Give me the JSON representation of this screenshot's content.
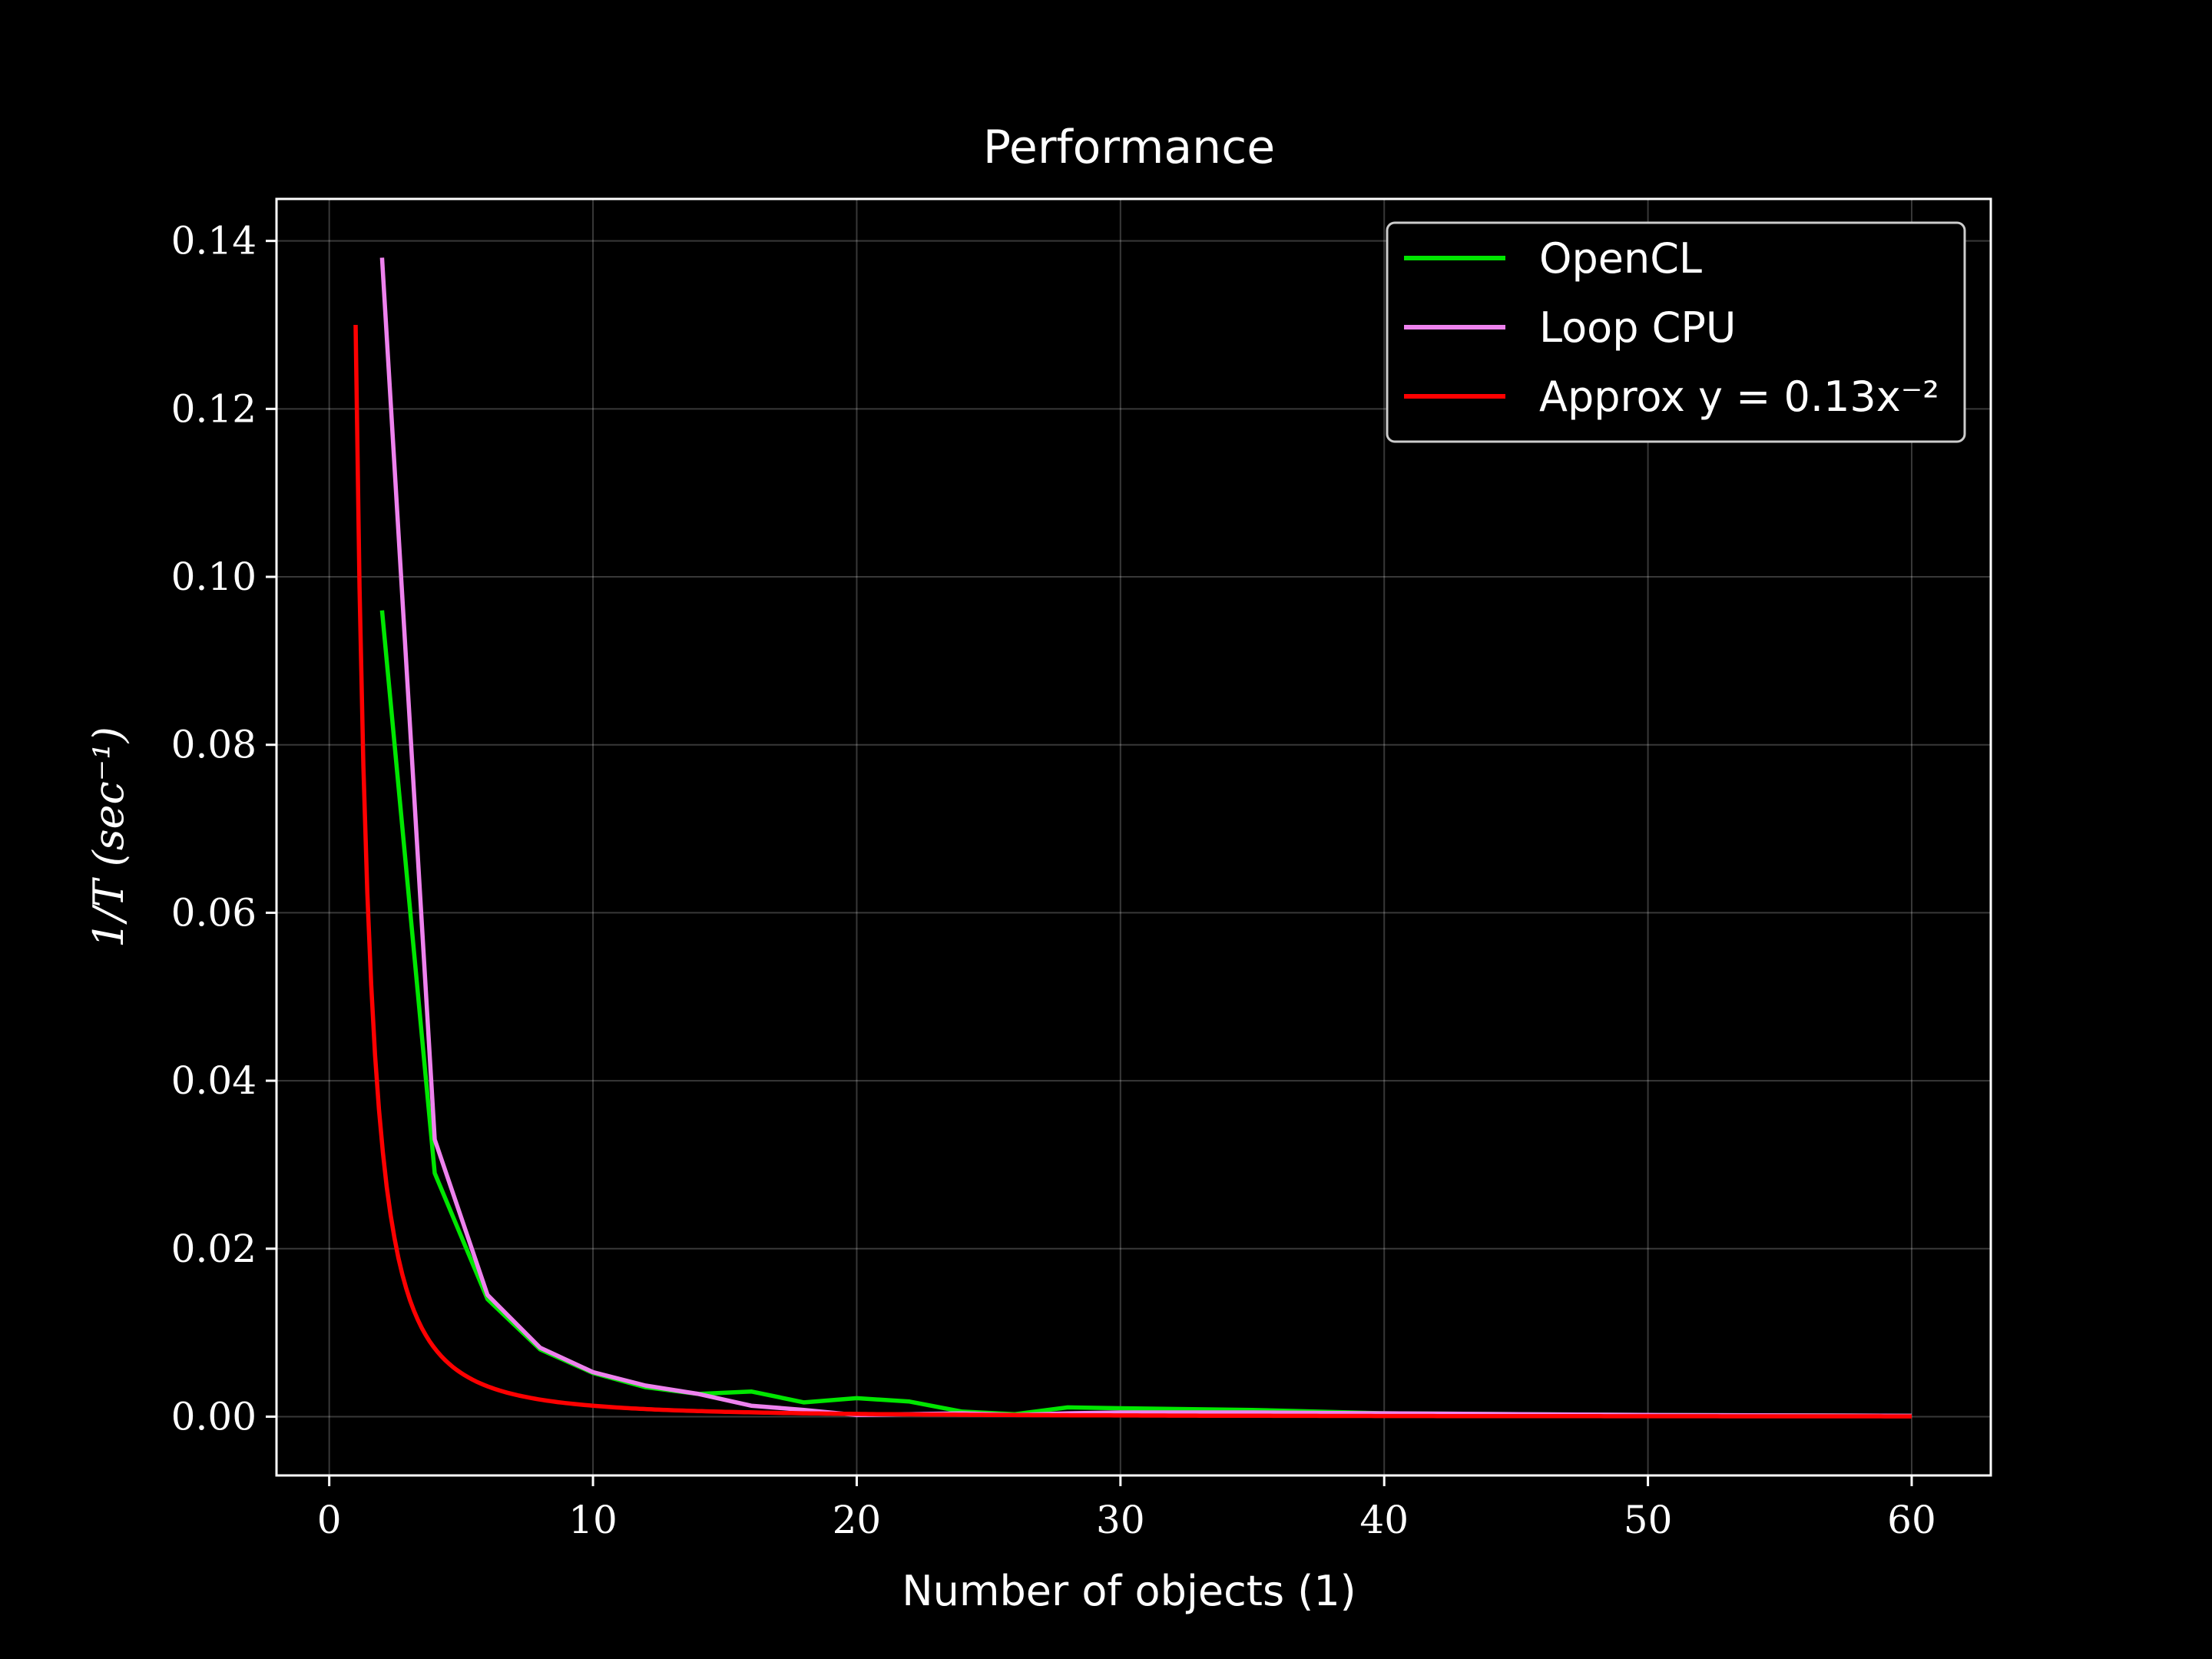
{
  "chart_data": {
    "type": "line",
    "title": "Performance",
    "xlabel": "Number of objects (1)",
    "ylabel": "1/T  (sec⁻¹)",
    "xlim": [
      -2,
      63
    ],
    "ylim": [
      -0.007,
      0.145
    ],
    "xticks": [
      0,
      10,
      20,
      30,
      40,
      50,
      60
    ],
    "xtick_labels": [
      "0",
      "10",
      "20",
      "30",
      "40",
      "50",
      "60"
    ],
    "yticks": [
      0.0,
      0.02,
      0.04,
      0.06,
      0.08,
      0.1,
      0.12,
      0.14
    ],
    "ytick_labels": [
      "0.00",
      "0.02",
      "0.04",
      "0.06",
      "0.08",
      "0.10",
      "0.12",
      "0.14"
    ],
    "grid": true,
    "legend_position": "top-right",
    "series": [
      {
        "name": "OpenCL",
        "color": "#00e600",
        "x": [
          2,
          4,
          6,
          8,
          10,
          12,
          14,
          16,
          18,
          20,
          22,
          24,
          26,
          28,
          30,
          35,
          40,
          50,
          60
        ],
        "y": [
          0.096,
          0.029,
          0.014,
          0.008,
          0.0052,
          0.0035,
          0.0027,
          0.003,
          0.0017,
          0.0022,
          0.0018,
          0.0006,
          0.0003,
          0.0011,
          0.001,
          0.0008,
          0.0004,
          0.0002,
          0.0001
        ]
      },
      {
        "name": "Loop CPU",
        "color": "#ee82ee",
        "x": [
          2,
          4,
          6,
          8,
          10,
          12,
          14,
          16,
          18,
          20,
          22,
          24,
          26,
          28,
          30,
          35,
          40,
          50,
          60
        ],
        "y": [
          0.138,
          0.033,
          0.0145,
          0.0082,
          0.0053,
          0.0037,
          0.0027,
          0.0013,
          0.0008,
          0.0002,
          0.0003,
          0.0004,
          0.0002,
          0.0004,
          0.0005,
          0.0005,
          0.0004,
          0.0002,
          0.0001
        ]
      },
      {
        "name": "Approx y = 0.13x⁻²",
        "color": "#ff0000",
        "function": "0.13/x^2",
        "x_range": [
          1,
          60
        ]
      }
    ],
    "legend": [
      {
        "label": "OpenCL",
        "color": "#00e600"
      },
      {
        "label": "Loop CPU",
        "color": "#ee82ee"
      },
      {
        "label": "Approx y = 0.13x⁻²",
        "color": "#ff0000"
      }
    ]
  }
}
